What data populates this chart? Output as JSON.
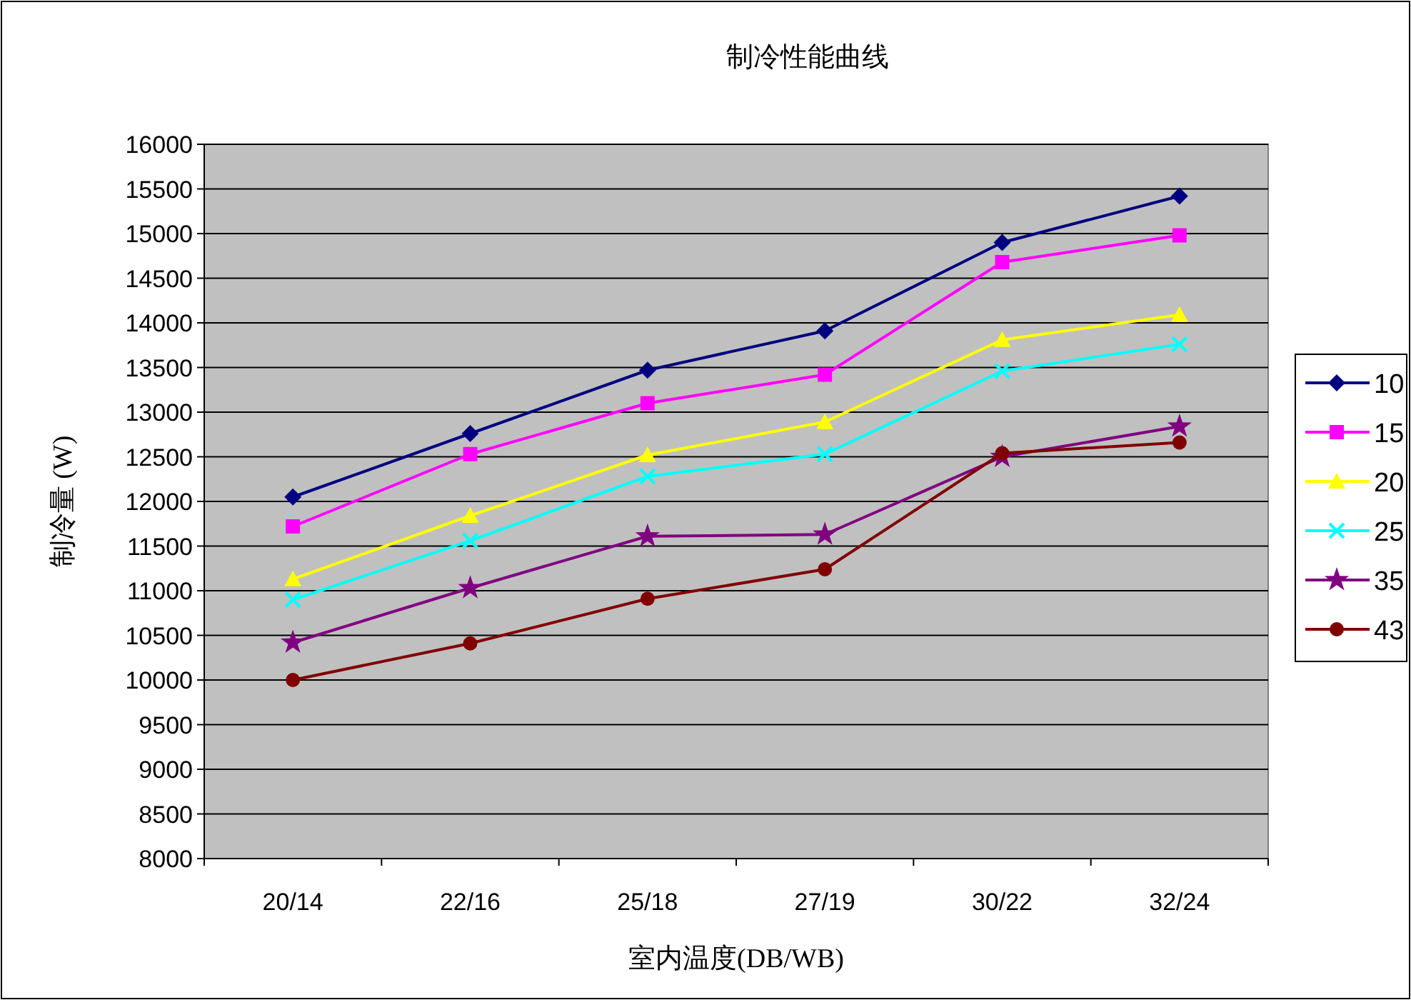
{
  "chart_data": {
    "type": "line",
    "title": "制冷性能曲线",
    "xlabel": "室内温度(DB/WB)",
    "ylabel": "制冷量 (W)",
    "categories": [
      "20/14",
      "22/16",
      "25/18",
      "27/19",
      "30/22",
      "32/24"
    ],
    "ylim": [
      8000,
      16000
    ],
    "yticks": [
      8000,
      8500,
      9000,
      9500,
      10000,
      10500,
      11000,
      11500,
      12000,
      12500,
      13000,
      13500,
      14000,
      14500,
      15000,
      15500,
      16000
    ],
    "grid": "y",
    "legend": "right",
    "line_style": "solid",
    "series": [
      {
        "name": "10",
        "color": "#000080",
        "marker": "diamond",
        "values": [
          12050,
          12760,
          13470,
          13910,
          14900,
          15420
        ]
      },
      {
        "name": "15",
        "color": "#ff00ff",
        "marker": "square",
        "values": [
          11720,
          12530,
          13100,
          13420,
          14680,
          14980
        ]
      },
      {
        "name": "20",
        "color": "#ffff00",
        "marker": "triangle",
        "values": [
          11130,
          11840,
          12520,
          12890,
          13810,
          14090
        ]
      },
      {
        "name": "25",
        "color": "#00ffff",
        "marker": "cross",
        "values": [
          10900,
          11560,
          12280,
          12530,
          13460,
          13760
        ]
      },
      {
        "name": "35",
        "color": "#800080",
        "marker": "star",
        "values": [
          10420,
          11030,
          11610,
          11630,
          12500,
          12840
        ]
      },
      {
        "name": "43",
        "color": "#800000",
        "marker": "circle",
        "values": [
          10000,
          10410,
          10910,
          11240,
          12540,
          12660
        ]
      }
    ]
  }
}
